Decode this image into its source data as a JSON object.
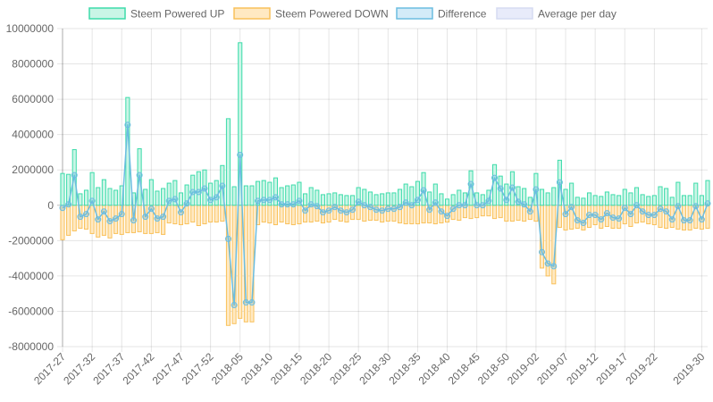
{
  "chart_data": {
    "type": "bar+line",
    "title": "",
    "xlabel": "",
    "ylabel": "",
    "ylim": [
      -8000000,
      10000000
    ],
    "y_ticks": [
      10000000,
      8000000,
      6000000,
      4000000,
      2000000,
      0,
      -2000000,
      -4000000,
      -6000000,
      -8000000
    ],
    "y_tick_labels": [
      "10000000",
      "8000000",
      "6000000",
      "4000000",
      "2000000",
      "0",
      "-2000000",
      "-4000000",
      "-6000000",
      "-8000000"
    ],
    "x_tick_labels": [
      {
        "index": 0,
        "label": "2017-27"
      },
      {
        "index": 5,
        "label": "2017-32"
      },
      {
        "index": 10,
        "label": "2017-37"
      },
      {
        "index": 15,
        "label": "2017-42"
      },
      {
        "index": 20,
        "label": "2017-47"
      },
      {
        "index": 25,
        "label": "2017-52"
      },
      {
        "index": 30,
        "label": "2018-05"
      },
      {
        "index": 35,
        "label": "2018-10"
      },
      {
        "index": 40,
        "label": "2018-15"
      },
      {
        "index": 45,
        "label": "2018-20"
      },
      {
        "index": 50,
        "label": "2018-25"
      },
      {
        "index": 55,
        "label": "2018-30"
      },
      {
        "index": 60,
        "label": "2018-35"
      },
      {
        "index": 65,
        "label": "2018-40"
      },
      {
        "index": 70,
        "label": "2018-45"
      },
      {
        "index": 75,
        "label": "2018-50"
      },
      {
        "index": 80,
        "label": "2019-02"
      },
      {
        "index": 85,
        "label": "2019-07"
      },
      {
        "index": 90,
        "label": "2019-12"
      },
      {
        "index": 95,
        "label": "2019-17"
      },
      {
        "index": 100,
        "label": "2019-22"
      },
      {
        "index": 108,
        "label": "2019-30"
      }
    ],
    "legend": [
      {
        "name": "Steem Powered UP",
        "fill": "#c9f5e6",
        "stroke": "#3ddcaa"
      },
      {
        "name": "Steem Powered DOWN",
        "fill": "#ffe9c2",
        "stroke": "#f9c15a"
      },
      {
        "name": "Difference",
        "fill": "#d3ebf8",
        "stroke": "#6cbde0"
      },
      {
        "name": "Average per day",
        "fill": "#e8ebfa",
        "stroke": "#d6dbf2"
      }
    ],
    "legend_position": "top",
    "series": [
      {
        "name": "Steem Powered UP",
        "type": "bar",
        "values": [
          1800000,
          1750000,
          3150000,
          650000,
          850000,
          1850000,
          1000000,
          1450000,
          950000,
          850000,
          1100000,
          6100000,
          700000,
          3200000,
          900000,
          1450000,
          800000,
          950000,
          1250000,
          1400000,
          700000,
          1150000,
          1700000,
          1900000,
          2000000,
          1250000,
          1400000,
          2250000,
          4900000,
          1050000,
          9200000,
          1100000,
          1100000,
          1350000,
          1400000,
          1300000,
          1550000,
          1000000,
          1100000,
          1150000,
          1300000,
          650000,
          1000000,
          850000,
          600000,
          650000,
          700000,
          600000,
          550000,
          550000,
          1000000,
          900000,
          750000,
          600000,
          650000,
          700000,
          700000,
          900000,
          1200000,
          1050000,
          1350000,
          1850000,
          750000,
          1200000,
          650000,
          350000,
          600000,
          850000,
          700000,
          1950000,
          700000,
          600000,
          850000,
          2300000,
          1650000,
          1200000,
          1900000,
          1050000,
          950000,
          450000,
          1800000,
          900000,
          700000,
          1000000,
          2550000,
          900000,
          1250000,
          450000,
          400000,
          700000,
          550000,
          500000,
          750000,
          600000,
          550000,
          900000,
          700000,
          1000000,
          600000,
          500000,
          550000,
          1050000,
          950000,
          450000,
          1300000,
          550000,
          550000,
          1250000,
          550000,
          1400000
        ]
      },
      {
        "name": "Steem Powered DOWN",
        "type": "bar",
        "values": [
          -1950000,
          -1700000,
          -1450000,
          -1300000,
          -1350000,
          -1600000,
          -1800000,
          -1700000,
          -1850000,
          -1600000,
          -1650000,
          -1550000,
          -1550000,
          -1500000,
          -1600000,
          -1600000,
          -1550000,
          -1650000,
          -1000000,
          -1050000,
          -1100000,
          -1050000,
          -950000,
          -1150000,
          -1050000,
          -950000,
          -950000,
          -900000,
          -6800000,
          -6700000,
          -6400000,
          -6600000,
          -6600000,
          -1100000,
          -950000,
          -1000000,
          -1100000,
          -950000,
          -1050000,
          -1100000,
          -1050000,
          -950000,
          -950000,
          -900000,
          -1000000,
          -950000,
          -800000,
          -900000,
          -950000,
          -800000,
          -800000,
          -900000,
          -850000,
          -850000,
          -950000,
          -900000,
          -900000,
          -1000000,
          -1050000,
          -1050000,
          -1050000,
          -1000000,
          -1000000,
          -1050000,
          -1000000,
          -950000,
          -800000,
          -850000,
          -700000,
          -750000,
          -700000,
          -600000,
          -600000,
          -750000,
          -700000,
          -900000,
          -900000,
          -850000,
          -900000,
          -800000,
          -900000,
          -3550000,
          -4000000,
          -4450000,
          -1250000,
          -1400000,
          -1350000,
          -1300000,
          -1400000,
          -1250000,
          -1100000,
          -1300000,
          -1200000,
          -1300000,
          -1300000,
          -1050000,
          -1200000,
          -1000000,
          -950000,
          -1050000,
          -1100000,
          -1250000,
          -1300000,
          -1250000,
          -1350000,
          -1400000,
          -1400000,
          -1300000,
          -1350000,
          -1300000
        ]
      },
      {
        "name": "Difference",
        "type": "line",
        "values": [
          -150000,
          50000,
          1700000,
          -650000,
          -500000,
          250000,
          -800000,
          -350000,
          -900000,
          -750000,
          -500000,
          4550000,
          -850000,
          1700000,
          -650000,
          -200000,
          -750000,
          -650000,
          250000,
          350000,
          -400000,
          100000,
          750000,
          750000,
          950000,
          300000,
          450000,
          1100000,
          -1900000,
          -5650000,
          2850000,
          -5500000,
          -5500000,
          250000,
          300000,
          300000,
          450000,
          50000,
          50000,
          50000,
          250000,
          -300000,
          50000,
          -50000,
          -400000,
          -300000,
          -100000,
          -300000,
          -400000,
          -250000,
          200000,
          0,
          -100000,
          -250000,
          -300000,
          -200000,
          -200000,
          -100000,
          150000,
          0,
          300000,
          850000,
          -250000,
          150000,
          -350000,
          -600000,
          -200000,
          0,
          0,
          1200000,
          0,
          0,
          250000,
          1550000,
          950000,
          300000,
          1000000,
          200000,
          50000,
          -350000,
          900000,
          -2650000,
          -3300000,
          -3450000,
          1300000,
          -500000,
          -100000,
          -850000,
          -1000000,
          -550000,
          -550000,
          -800000,
          -450000,
          -700000,
          -750000,
          -150000,
          -500000,
          0,
          -350000,
          -550000,
          -550000,
          -200000,
          -350000,
          -800000,
          -50000,
          -850000,
          -850000,
          -50000,
          -800000,
          100000
        ]
      }
    ]
  }
}
